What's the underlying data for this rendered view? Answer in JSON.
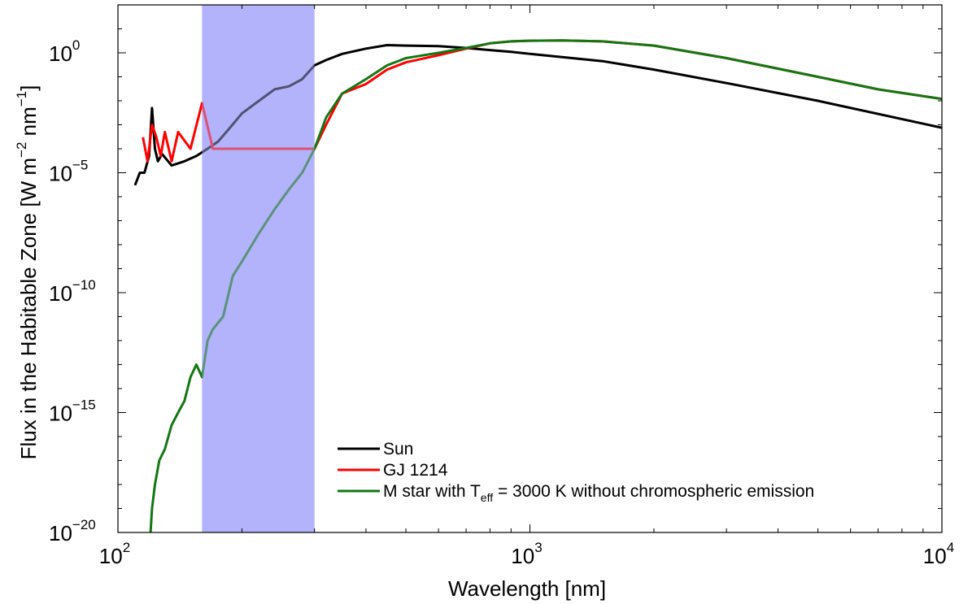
{
  "chart_data": {
    "type": "line",
    "title": "",
    "xlabel": "Wavelength [nm]",
    "ylabel": "Flux in the Habitable Zone [W m^-2 nm^-1]",
    "ylabel_parts": {
      "main": "Flux in the Habitable Zone [W m",
      "e1": "−2",
      "mid": " nm",
      "e2": "−1",
      "end": "]"
    },
    "x_scale": "log",
    "y_scale": "log",
    "xlim": [
      100,
      10000
    ],
    "ylim": [
      1e-20,
      100.0
    ],
    "x_ticks": [
      {
        "value": 100,
        "base": "10",
        "exp": "2"
      },
      {
        "value": 1000,
        "base": "10",
        "exp": "3"
      },
      {
        "value": 10000,
        "base": "10",
        "exp": "4"
      }
    ],
    "y_ticks": [
      {
        "value": 1e-20,
        "base": "10",
        "exp": "−20"
      },
      {
        "value": 1e-15,
        "base": "10",
        "exp": "−15"
      },
      {
        "value": 1e-10,
        "base": "10",
        "exp": "−10"
      },
      {
        "value": 1e-05,
        "base": "10",
        "exp": "−5"
      },
      {
        "value": 1,
        "base": "10",
        "exp": "0"
      }
    ],
    "grid": false,
    "legend_position": "bottom-right",
    "shaded_region": {
      "x_range": [
        160,
        300
      ],
      "color": "#b3b3fb"
    },
    "series": [
      {
        "name": "Sun",
        "color": "#000000",
        "x": [
          110,
          113,
          116,
          119,
          121,
          123,
          125,
          128,
          135,
          145,
          155,
          165,
          175,
          185,
          200,
          220,
          240,
          260,
          280,
          300,
          320,
          350,
          400,
          450,
          500,
          600,
          700,
          800,
          900,
          1000,
          1500,
          2000,
          3000,
          5000,
          10000
        ],
        "y": [
          3e-06,
          1e-05,
          1e-05,
          5e-05,
          0.005,
          0.0001,
          3e-05,
          6e-05,
          2e-05,
          3e-05,
          5e-05,
          0.0001,
          0.0002,
          0.0006,
          0.003,
          0.01,
          0.03,
          0.04,
          0.08,
          0.3,
          0.5,
          0.9,
          1.5,
          2.1,
          2.0,
          1.9,
          1.6,
          1.3,
          1.1,
          0.9,
          0.45,
          0.2,
          0.055,
          0.01,
          0.00075
        ],
        "label": "Sun"
      },
      {
        "name": "GJ 1214",
        "color": "#ff0000",
        "x": [
          115,
          118,
          121,
          124,
          127,
          130,
          135,
          140,
          150,
          160,
          170,
          175,
          200,
          220,
          250,
          280,
          300,
          320,
          350,
          400,
          450,
          500,
          600,
          700,
          800,
          900,
          1000,
          1200,
          1500,
          2000,
          3000,
          5000,
          7000,
          10000
        ],
        "y": [
          0.0003,
          3e-05,
          0.001,
          0.0003,
          5e-05,
          0.0005,
          3e-05,
          0.0005,
          0.0001,
          0.008,
          0.0001,
          0.0001,
          0.0001,
          0.0001,
          0.0001,
          0.0001,
          0.0001,
          0.001,
          0.02,
          0.05,
          0.2,
          0.4,
          0.8,
          1.5,
          2.5,
          3.0,
          3.2,
          3.3,
          3.0,
          2.0,
          0.6,
          0.1,
          0.03,
          0.012
        ],
        "label": "GJ 1214"
      },
      {
        "name": "M star with T_eff = 3000 K without chromospheric emission",
        "color": "#137713",
        "x": [
          120,
          121,
          123,
          126,
          130,
          135,
          140,
          145,
          150,
          155,
          160,
          165,
          170,
          180,
          190,
          200,
          220,
          240,
          260,
          280,
          300,
          320,
          350,
          400,
          450,
          500,
          600,
          700,
          800,
          900,
          1000,
          1200,
          1500,
          2000,
          3000,
          5000,
          7000,
          10000
        ],
        "y": [
          1e-20,
          1e-19,
          1e-18,
          1e-17,
          3e-17,
          3e-16,
          1e-15,
          3e-15,
          3e-14,
          1e-13,
          3e-14,
          1e-12,
          3e-12,
          1e-11,
          5e-10,
          2e-09,
          3e-08,
          3e-07,
          2e-06,
          1e-05,
          0.0001,
          0.002,
          0.02,
          0.08,
          0.3,
          0.6,
          1.0,
          1.6,
          2.5,
          3.0,
          3.2,
          3.3,
          3.0,
          2.0,
          0.6,
          0.1,
          0.03,
          0.012
        ],
        "label": "M star with T",
        "label_sub": "eff",
        "label_rest": " = 3000 K without chromospheric emission"
      }
    ]
  }
}
